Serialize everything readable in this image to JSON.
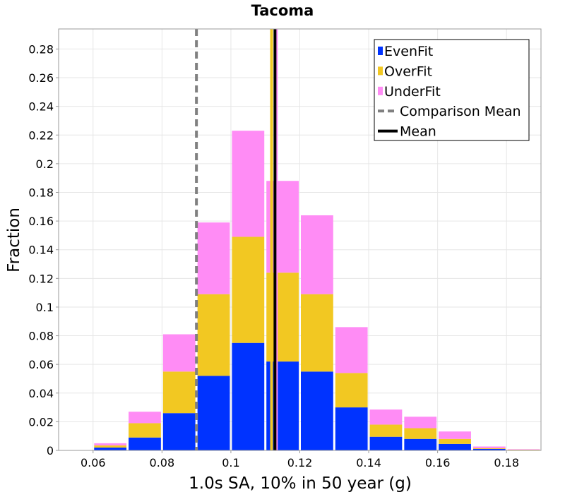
{
  "chart_data": {
    "type": "bar",
    "stacked": true,
    "title": "Tacoma",
    "xlabel": "1.0s SA, 10% in 50 year (g)",
    "ylabel": "Fraction",
    "xlim": [
      0.05,
      0.19
    ],
    "ylim": [
      0,
      0.294
    ],
    "bin_width": 0.01,
    "bin_centers": [
      0.055,
      0.065,
      0.075,
      0.085,
      0.095,
      0.105,
      0.115,
      0.125,
      0.135,
      0.145,
      0.155,
      0.165,
      0.175,
      0.185
    ],
    "x_ticks": [
      {
        "value": 0.06,
        "label": "0.06"
      },
      {
        "value": 0.08,
        "label": "0.08"
      },
      {
        "value": 0.1,
        "label": "0.1"
      },
      {
        "value": 0.12,
        "label": "0.12"
      },
      {
        "value": 0.14,
        "label": "0.14"
      },
      {
        "value": 0.16,
        "label": "0.16"
      },
      {
        "value": 0.18,
        "label": "0.18"
      }
    ],
    "y_ticks": [
      {
        "value": 0,
        "label": "0"
      },
      {
        "value": 0.02,
        "label": "0.02"
      },
      {
        "value": 0.04,
        "label": "0.04"
      },
      {
        "value": 0.06,
        "label": "0.06"
      },
      {
        "value": 0.08,
        "label": "0.08"
      },
      {
        "value": 0.1,
        "label": "0.1"
      },
      {
        "value": 0.12,
        "label": "0.12"
      },
      {
        "value": 0.14,
        "label": "0.14"
      },
      {
        "value": 0.16,
        "label": "0.16"
      },
      {
        "value": 0.18,
        "label": "0.18"
      },
      {
        "value": 0.2,
        "label": "0.2"
      },
      {
        "value": 0.22,
        "label": "0.22"
      },
      {
        "value": 0.24,
        "label": "0.24"
      },
      {
        "value": 0.26,
        "label": "0.26"
      },
      {
        "value": 0.28,
        "label": "0.28"
      }
    ],
    "series": [
      {
        "name": "EvenFit",
        "color": "#0033ff",
        "values": [
          0.0,
          0.002,
          0.009,
          0.026,
          0.052,
          0.075,
          0.062,
          0.055,
          0.03,
          0.0095,
          0.008,
          0.0045,
          0.001,
          0.0003
        ]
      },
      {
        "name": "OverFit",
        "color": "#f2c822",
        "values": [
          0.0,
          0.0015,
          0.01,
          0.029,
          0.057,
          0.074,
          0.062,
          0.054,
          0.024,
          0.0085,
          0.0075,
          0.0035,
          0.0005,
          0.0002
        ]
      },
      {
        "name": "UnderFit",
        "color": "#ff8cf5",
        "values": [
          0.0,
          0.0015,
          0.008,
          0.026,
          0.05,
          0.074,
          0.064,
          0.055,
          0.032,
          0.0105,
          0.008,
          0.0052,
          0.0012,
          0.0003
        ]
      }
    ],
    "vertical_lines": [
      {
        "name": "Comparison Mean",
        "x": 0.09,
        "color": "#808080",
        "style": "dashed"
      },
      {
        "name": "OverFit Mean",
        "x": 0.1118,
        "color": "#f2c822",
        "style": "solid"
      },
      {
        "name": "UnderFit Mean",
        "x": 0.1132,
        "color": "#ff8cf5",
        "style": "solid"
      },
      {
        "name": "Mean",
        "x": 0.1128,
        "color": "#000000",
        "style": "solid"
      }
    ],
    "legend": {
      "position": "top-right",
      "entries": [
        {
          "label": "EvenFit",
          "kind": "patch",
          "color": "#0033ff"
        },
        {
          "label": "OverFit",
          "kind": "patch",
          "color": "#f2c822"
        },
        {
          "label": "UnderFit",
          "kind": "patch",
          "color": "#ff8cf5"
        },
        {
          "label": "Comparison Mean",
          "kind": "dashed-line",
          "color": "#808080"
        },
        {
          "label": "Mean",
          "kind": "solid-line",
          "color": "#000000"
        }
      ]
    },
    "grid": true
  }
}
